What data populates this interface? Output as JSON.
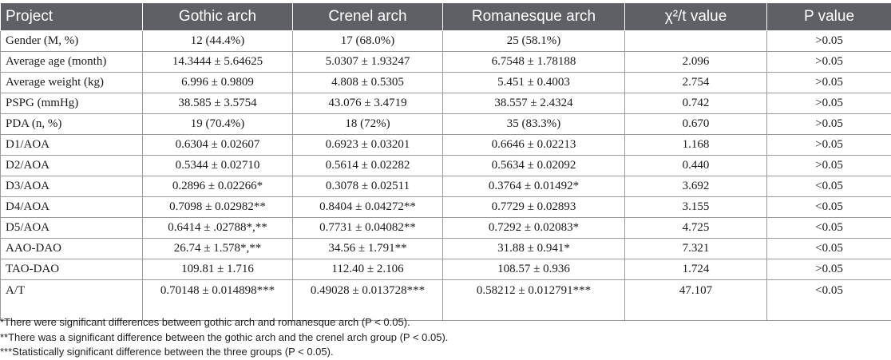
{
  "columns": [
    "Project",
    "Gothic arch",
    "Crenel arch",
    "Romanesque arch",
    "χ²/t value",
    "P value"
  ],
  "rows": [
    [
      "Gender (M, %)",
      "12 (44.4%)",
      "17 (68.0%)",
      "25 (58.1%)",
      "",
      ">0.05"
    ],
    [
      "Average age (month)",
      "14.3444 ± 5.64625",
      "5.0307 ± 1.93247",
      "6.7548 ± 1.78188",
      "2.096",
      ">0.05"
    ],
    [
      "Average weight (kg)",
      "6.996 ± 0.9809",
      "4.808 ± 0.5305",
      "5.451 ± 0.4003",
      "2.754",
      ">0.05"
    ],
    [
      "PSPG (mmHg)",
      "38.585 ± 3.5754",
      "43.076 ± 3.4719",
      "38.557 ± 2.4324",
      "0.742",
      ">0.05"
    ],
    [
      "PDA (n, %)",
      "19 (70.4%)",
      "18 (72%)",
      "35 (83.3%)",
      "0.670",
      ">0.05"
    ],
    [
      "D1/AOA",
      "0.6304 ± 0.02607",
      "0.6923 ± 0.03201",
      "0.6646 ± 0.02213",
      "1.168",
      ">0.05"
    ],
    [
      "D2/AOA",
      "0.5344 ± 0.02710",
      "0.5614 ± 0.02282",
      "0.5634 ± 0.02092",
      "0.440",
      ">0.05"
    ],
    [
      "D3/AOA",
      "0.2896 ± 0.02266*",
      "0.3078 ± 0.02511",
      "0.3764 ± 0.01492*",
      "3.692",
      "<0.05"
    ],
    [
      "D4/AOA",
      "0.7098 ± 0.02982**",
      "0.8404 ± 0.04272**",
      "0.7729 ± 0.02893",
      "3.155",
      "<0.05"
    ],
    [
      "D5/AOA",
      "0.6414 ± .02788*,**",
      "0.7731 ± 0.04082**",
      "0.7292 ± 0.02083*",
      "4.725",
      "<0.05"
    ],
    [
      "AAO-DAO",
      "26.74 ± 1.578*,**",
      "34.56 ± 1.791**",
      "31.88 ± 0.941*",
      "7.321",
      "<0.05"
    ],
    [
      "TAO-DAO",
      "109.81 ± 1.716",
      "112.40 ± 2.106",
      "108.57 ± 0.936",
      "1.724",
      ">0.05"
    ],
    [
      "A/T",
      "0.70148 ± 0.014898***",
      "0.49028 ± 0.013728***",
      "0.58212 ± 0.012791***",
      "47.107",
      "<0.05"
    ]
  ],
  "footnotes": [
    "*There were significant differences between gothic arch and romanesque arch (P < 0.05).",
    "**There was a significant difference between the gothic arch and the crenel arch group (P < 0.05).",
    "***Statistically significant difference between the three groups (P < 0.05)."
  ]
}
